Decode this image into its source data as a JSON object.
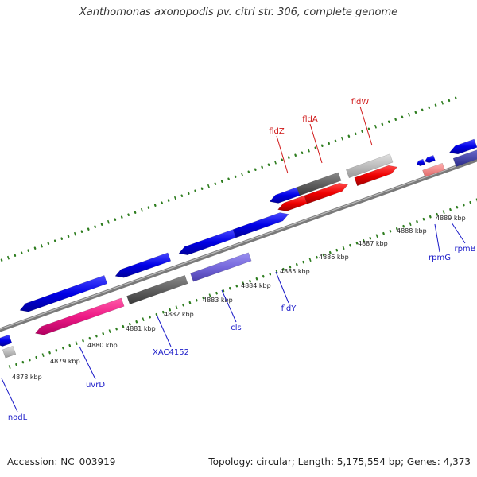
{
  "title": "Xanthomonas axonopodis pv. citri str. 306, complete genome",
  "footer": {
    "accession": "Accession: NC_003919",
    "summary": "Topology: circular; Length: 5,175,554 bp; Genes: 4,373"
  },
  "colors": {
    "backbone": "#7a7a7a",
    "tick": "#2e7d1f",
    "forward_label": "#d01818",
    "reverse_label": "#1a1ac8"
  },
  "scale_ticks": [
    "4878 kbp",
    "4879 kbp",
    "4880 kbp",
    "4881 kbp",
    "4882 kbp",
    "4883 kbp",
    "4884 kbp",
    "4885 kbp",
    "4886 kbp",
    "4887 kbp",
    "4888 kbp",
    "4889 kbp"
  ],
  "forward_labels": [
    "fldZ",
    "fldA",
    "fldW"
  ],
  "reverse_labels": [
    "nodL",
    "uvrD",
    "XAC4152",
    "cls",
    "fldY",
    "rpmG",
    "rpmB"
  ]
}
